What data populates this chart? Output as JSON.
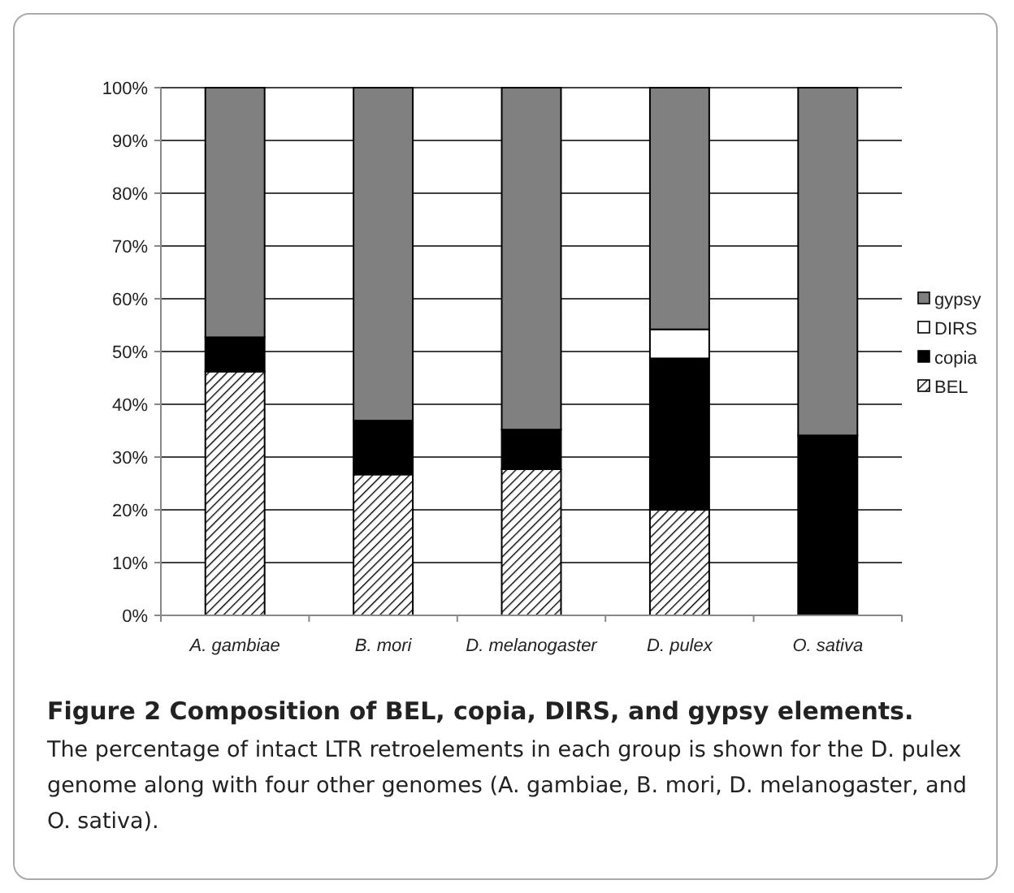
{
  "chart_data": {
    "type": "bar",
    "stacked": true,
    "title": "Figure 2 Composition of BEL, copia, DIRS, and gypsy elements.",
    "annotations": [
      "The percentage of intact LTR retroelements in each group is shown for the D. pulex genome along with four other genomes (A. gambiae, B. mori, D. melanogaster, and O. sativa)."
    ],
    "categories": [
      "A. gambiae",
      "B. mori",
      "D. melanogaster",
      "D. pulex",
      "O. sativa"
    ],
    "series": [
      {
        "name": "BEL",
        "color": "#000000",
        "values": [
          46.2,
          26.7,
          27.7,
          20.0,
          0
        ]
      },
      {
        "name": "copia",
        "color": "#000000",
        "values": [
          6.5,
          10.2,
          7.5,
          28.7,
          34.1
        ]
      },
      {
        "name": "DIRS",
        "color": "#ffffff",
        "values": [
          0,
          0,
          0,
          5.5,
          0
        ]
      },
      {
        "name": "gypsy",
        "color": "#808080",
        "values": [
          47.3,
          63.1,
          64.8,
          45.8,
          65.9
        ]
      }
    ],
    "ylim": [
      0,
      100
    ],
    "yticks": [
      {
        "value": 0,
        "label": "0%"
      },
      {
        "value": 10,
        "label": "10%"
      },
      {
        "value": 20,
        "label": "20%"
      },
      {
        "value": 30,
        "label": "30%"
      },
      {
        "value": 40,
        "label": "40%"
      },
      {
        "value": 50,
        "label": "50%"
      },
      {
        "value": 60,
        "label": "60%"
      },
      {
        "value": 70,
        "label": "70%"
      },
      {
        "value": 80,
        "label": "80%"
      },
      {
        "value": 90,
        "label": "90%"
      },
      {
        "value": 100,
        "label": "100%"
      }
    ],
    "grid": "y",
    "legend": "right"
  }
}
